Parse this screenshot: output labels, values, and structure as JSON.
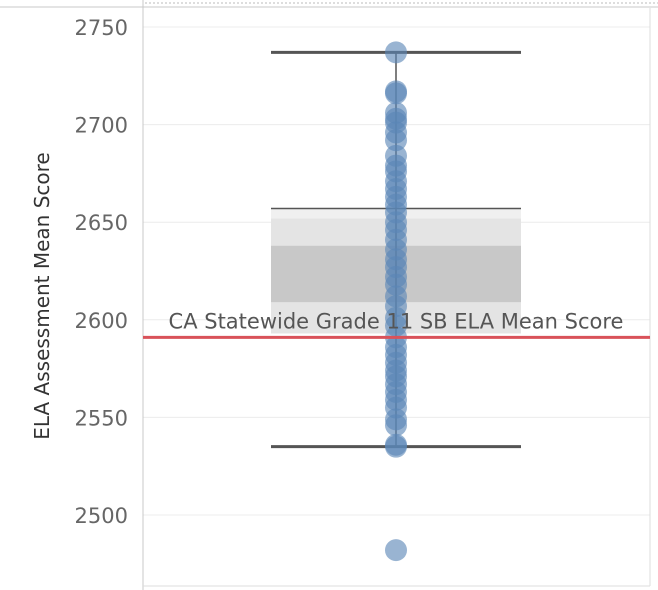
{
  "chart_data": {
    "type": "box",
    "ylabel": "ELA Assessment Mean Score",
    "yticks": [
      2500,
      2550,
      2600,
      2650,
      2700,
      2750
    ],
    "ytick_labels": [
      "2500",
      "2550",
      "2600",
      "2650",
      "2700",
      "2750"
    ],
    "ylim": [
      2465,
      2775
    ],
    "grid": true,
    "box": {
      "whisker_low": 2535,
      "q1": 2593,
      "median": 2609,
      "q3": 2657,
      "whisker_high": 2737
    },
    "band_segments": [
      {
        "from": 2593,
        "to": 2609,
        "shade": "#e4e4e4"
      },
      {
        "from": 2609,
        "to": 2638,
        "shade": "#c8c8c8"
      },
      {
        "from": 2638,
        "to": 2652,
        "shade": "#e4e4e4"
      },
      {
        "from": 2652,
        "to": 2657,
        "shade": "#f0f0f0"
      }
    ],
    "reference_line": {
      "value": 2591,
      "label": "CA Statewide Grade 11 SB ELA Mean Score",
      "color": "#d9525a"
    },
    "points": [
      2737,
      2717,
      2716,
      2706,
      2703,
      2701,
      2696,
      2692,
      2684,
      2679,
      2676,
      2671,
      2667,
      2663,
      2659,
      2655,
      2650,
      2646,
      2641,
      2636,
      2631,
      2627,
      2622,
      2618,
      2612,
      2607,
      2601,
      2597,
      2591,
      2586,
      2582,
      2578,
      2574,
      2571,
      2567,
      2563,
      2559,
      2555,
      2549,
      2546,
      2536,
      2535,
      2482
    ],
    "point_color": "#5b86b6"
  }
}
